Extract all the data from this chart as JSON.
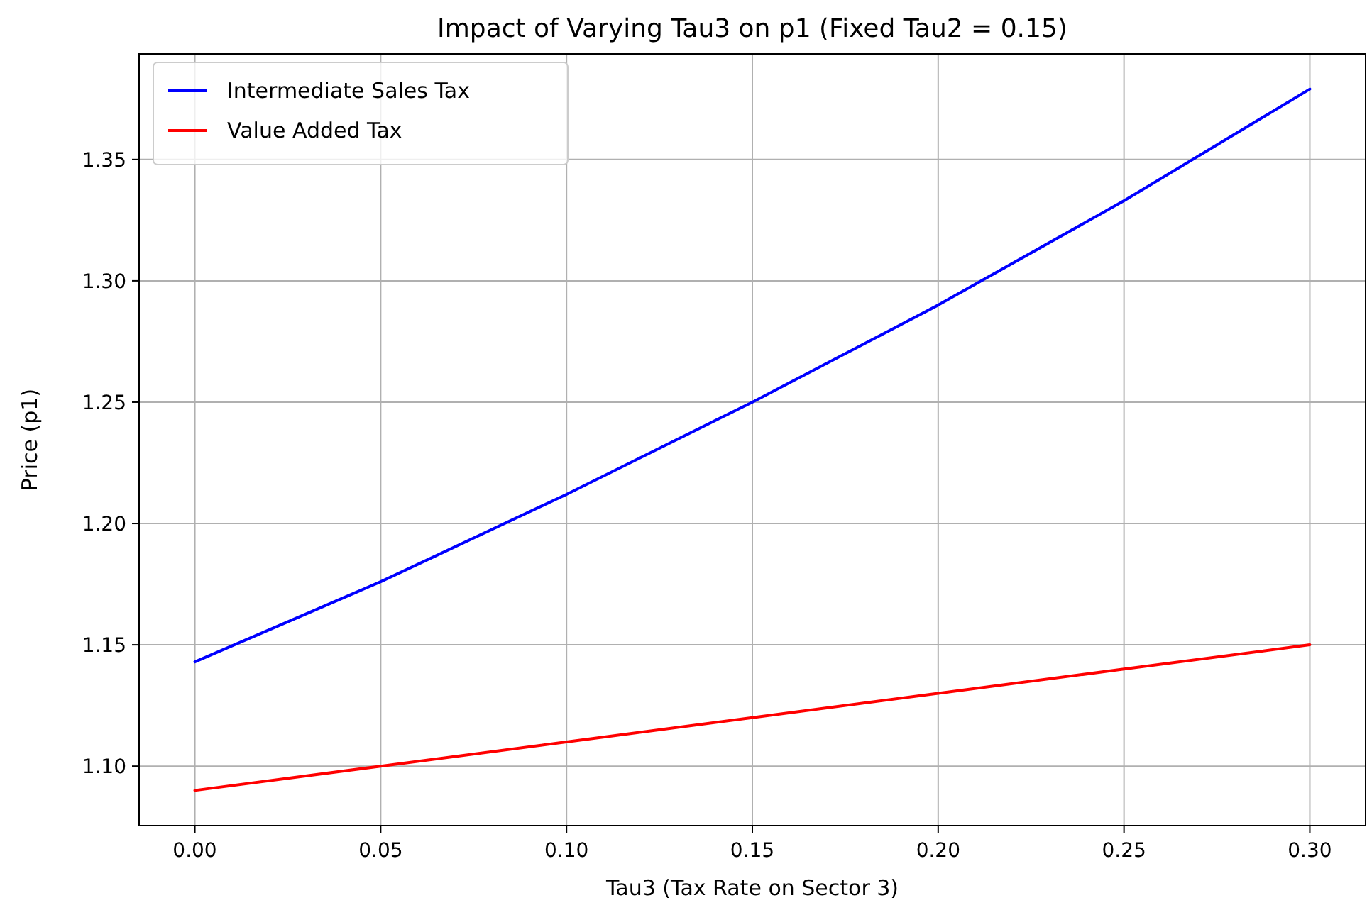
{
  "chart_data": {
    "type": "line",
    "title": "Impact of Varying Tau3 on p1 (Fixed Tau2 = 0.15)",
    "xlabel": "Tau3 (Tax Rate on Sector 3)",
    "ylabel": "Price (p1)",
    "x": [
      0,
      0.05,
      0.1,
      0.15,
      0.2,
      0.25,
      0.3
    ],
    "series": [
      {
        "name": "Intermediate Sales Tax",
        "color": "#0000ff",
        "values": [
          1.143,
          1.176,
          1.212,
          1.25,
          1.29,
          1.333,
          1.379
        ]
      },
      {
        "name": "Value Added Tax",
        "color": "#ff0000",
        "values": [
          1.09,
          1.1,
          1.11,
          1.12,
          1.13,
          1.14,
          1.15
        ]
      }
    ],
    "xlim": [
      -0.015,
      0.315
    ],
    "ylim": [
      1.0755,
      1.3935
    ],
    "xticks": [
      {
        "value": 0,
        "label": "0.00"
      },
      {
        "value": 0.05,
        "label": "0.05"
      },
      {
        "value": 0.1,
        "label": "0.10"
      },
      {
        "value": 0.15,
        "label": "0.15"
      },
      {
        "value": 0.2,
        "label": "0.20"
      },
      {
        "value": 0.25,
        "label": "0.25"
      },
      {
        "value": 0.3,
        "label": "0.30"
      }
    ],
    "yticks": [
      {
        "value": 1.1,
        "label": "1.10"
      },
      {
        "value": 1.15,
        "label": "1.15"
      },
      {
        "value": 1.2,
        "label": "1.20"
      },
      {
        "value": 1.25,
        "label": "1.25"
      },
      {
        "value": 1.3,
        "label": "1.30"
      },
      {
        "value": 1.35,
        "label": "1.35"
      }
    ],
    "grid": true,
    "legend": "top left",
    "marker": "none",
    "line_style": "solid"
  }
}
